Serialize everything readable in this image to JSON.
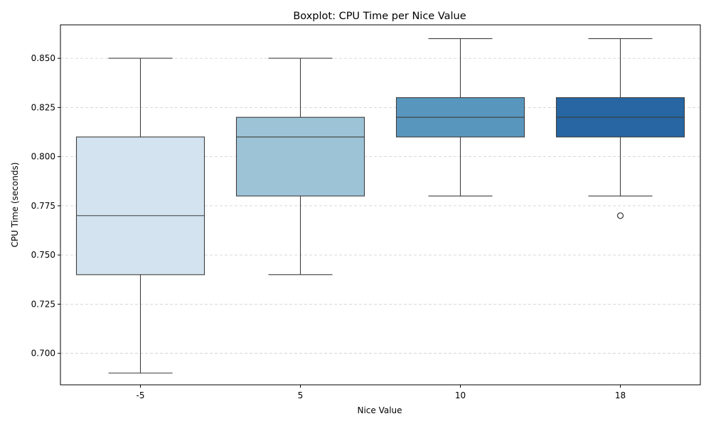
{
  "chart_data": {
    "type": "boxplot",
    "title": "Boxplot: CPU Time per Nice Value",
    "xlabel": "Nice Value",
    "ylabel": "CPU Time (seconds)",
    "ylim": [
      0.684,
      0.867
    ],
    "yticks": [
      0.7,
      0.725,
      0.75,
      0.775,
      0.8,
      0.825,
      0.85
    ],
    "ytick_labels": [
      "0.700",
      "0.725",
      "0.750",
      "0.775",
      "0.800",
      "0.825",
      "0.850"
    ],
    "grid": "y-dashed",
    "categories": [
      "-5",
      "5",
      "10",
      "18"
    ],
    "boxes": [
      {
        "category": "-5",
        "whisker_low": 0.69,
        "q1": 0.74,
        "median": 0.77,
        "q3": 0.81,
        "whisker_high": 0.85,
        "outliers": [],
        "color": "#d3e3f0"
      },
      {
        "category": "5",
        "whisker_low": 0.74,
        "q1": 0.78,
        "median": 0.81,
        "q3": 0.82,
        "whisker_high": 0.85,
        "outliers": [],
        "color": "#9dc3d7"
      },
      {
        "category": "10",
        "whisker_low": 0.78,
        "q1": 0.81,
        "median": 0.82,
        "q3": 0.83,
        "whisker_high": 0.86,
        "outliers": [],
        "color": "#5996be"
      },
      {
        "category": "18",
        "whisker_low": 0.78,
        "q1": 0.81,
        "median": 0.82,
        "q3": 0.83,
        "whisker_high": 0.86,
        "outliers": [
          0.77
        ],
        "color": "#2766a3"
      }
    ]
  }
}
